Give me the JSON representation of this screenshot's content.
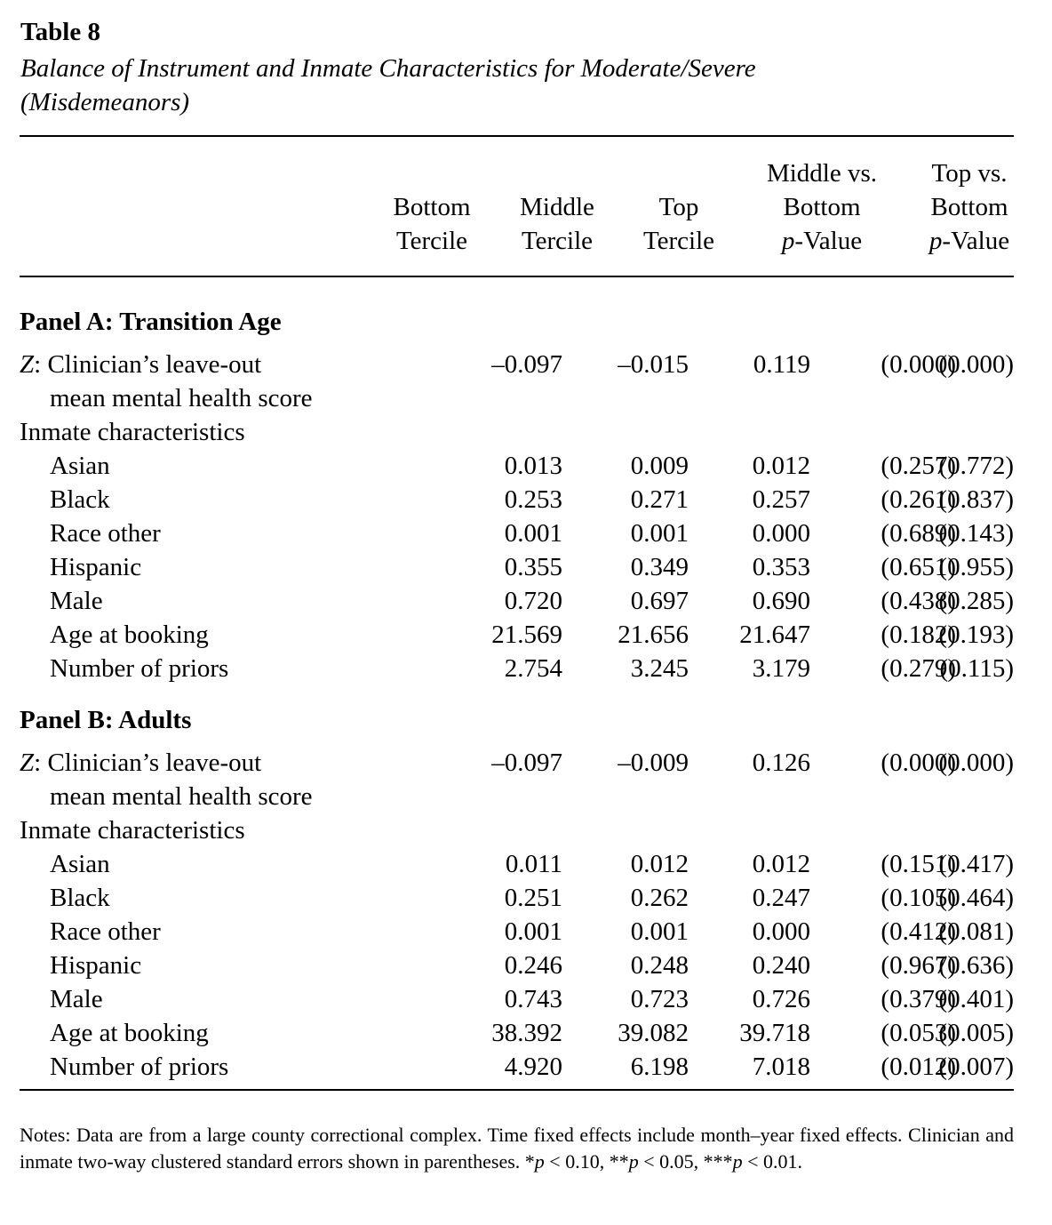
{
  "table_number": "Table 8",
  "caption": "Balance of Instrument and Inmate Characteristics for Moderate/Severe (Misdemeanors)",
  "headers": [
    [
      "",
      "Bottom",
      "Tercile"
    ],
    [
      "",
      "Middle",
      "Tercile"
    ],
    [
      "",
      "Top",
      "Tercile"
    ],
    [
      "Middle vs.",
      "Bottom",
      "p-Value"
    ],
    [
      "Top vs.",
      "Bottom",
      "p-Value"
    ]
  ],
  "panels": [
    {
      "title": "Panel A: Transition Age",
      "z_label": [
        "Z: Clinician’s leave-out",
        "mean mental health score"
      ],
      "z_values": [
        "–0.097",
        "–0.015",
        "0.119",
        "(0.000)",
        "(0.000)"
      ],
      "group_label": "Inmate characteristics",
      "rows": [
        {
          "label": "Asian",
          "values": [
            "0.013",
            "0.009",
            "0.012",
            "(0.257)",
            "(0.772)"
          ]
        },
        {
          "label": "Black",
          "values": [
            "0.253",
            "0.271",
            "0.257",
            "(0.261)",
            "(0.837)"
          ]
        },
        {
          "label": "Race other",
          "values": [
            "0.001",
            "0.001",
            "0.000",
            "(0.689)",
            "(0.143)"
          ]
        },
        {
          "label": "Hispanic",
          "values": [
            "0.355",
            "0.349",
            "0.353",
            "(0.651)",
            "(0.955)"
          ]
        },
        {
          "label": "Male",
          "values": [
            "0.720",
            "0.697",
            "0.690",
            "(0.438)",
            "(0.285)"
          ]
        },
        {
          "label": "Age at booking",
          "values": [
            "21.569",
            "21.656",
            "21.647",
            "(0.182)",
            "(0.193)"
          ]
        },
        {
          "label": "Number of priors",
          "values": [
            "2.754",
            "3.245",
            "3.179",
            "(0.279)",
            "(0.115)"
          ]
        }
      ]
    },
    {
      "title": "Panel B: Adults",
      "z_label": [
        "Z: Clinician’s leave-out",
        "mean mental health score"
      ],
      "z_values": [
        "–0.097",
        "–0.009",
        "0.126",
        "(0.000)",
        "(0.000)"
      ],
      "group_label": "Inmate characteristics",
      "rows": [
        {
          "label": "Asian",
          "values": [
            "0.011",
            "0.012",
            "0.012",
            "(0.151)",
            "(0.417)"
          ]
        },
        {
          "label": "Black",
          "values": [
            "0.251",
            "0.262",
            "0.247",
            "(0.105)",
            "(0.464)"
          ]
        },
        {
          "label": "Race other",
          "values": [
            "0.001",
            "0.001",
            "0.000",
            "(0.412)",
            "(0.081)"
          ]
        },
        {
          "label": "Hispanic",
          "values": [
            "0.246",
            "0.248",
            "0.240",
            "(0.967)",
            "(0.636)"
          ]
        },
        {
          "label": "Male",
          "values": [
            "0.743",
            "0.723",
            "0.726",
            "(0.379)",
            "(0.401)"
          ]
        },
        {
          "label": "Age at booking",
          "values": [
            "38.392",
            "39.082",
            "39.718",
            "(0.053)",
            "(0.005)"
          ]
        },
        {
          "label": "Number of priors",
          "values": [
            "4.920",
            "6.198",
            "7.018",
            "(0.012)",
            "(0.007)"
          ]
        }
      ]
    }
  ],
  "notes": "Notes: Data are from a large county correctional complex. Time fixed effects include month–year fixed effects. Clinician and inmate two-way clustered standard errors shown in parentheses. *p < 0.10, **p < 0.05, ***p < 0.01."
}
